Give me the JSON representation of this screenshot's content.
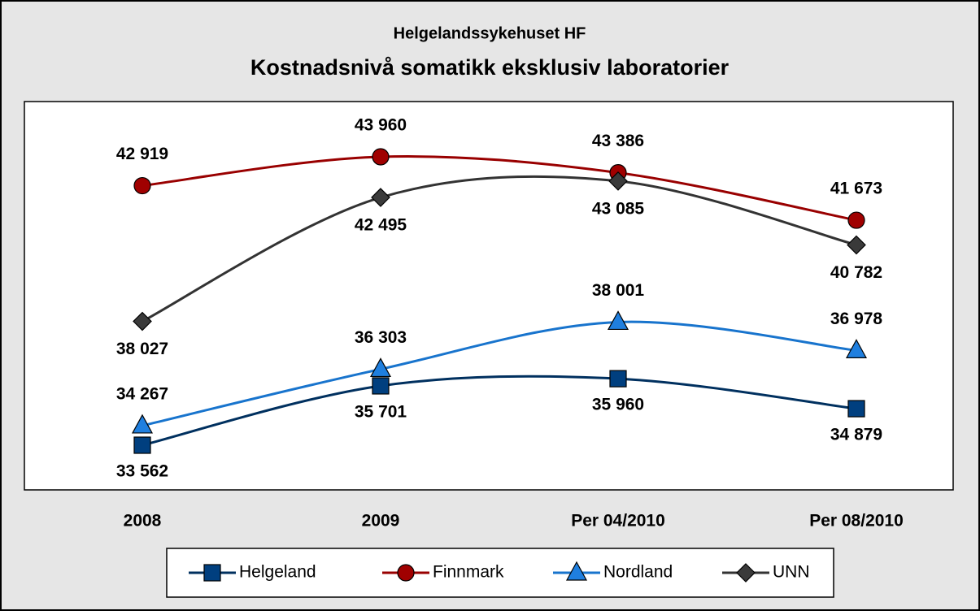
{
  "chart_data": {
    "type": "line",
    "subtitle": "Helgelandssykehuset HF",
    "title": "Kostnadsnivå somatikk eksklusiv laboratorier",
    "categories": [
      "2008",
      "2009",
      "Per 04/2010",
      "Per 08/2010"
    ],
    "series": [
      {
        "name": "Helgeland",
        "color": "#00305f",
        "marker": "square",
        "values": [
          33562,
          35701,
          35960,
          34879
        ],
        "value_labels": [
          "33 562",
          "35 701",
          "35 960",
          "34 879"
        ]
      },
      {
        "name": "Finnmark",
        "color": "#990000",
        "marker": "circle",
        "values": [
          42919,
          43960,
          43386,
          41673
        ],
        "value_labels": [
          "42 919",
          "43 960",
          "43 386",
          "41 673"
        ]
      },
      {
        "name": "Nordland",
        "color": "#1874cd",
        "marker": "triangle",
        "values": [
          34267,
          36303,
          38001,
          36978
        ],
        "value_labels": [
          "34 267",
          "36 303",
          "38 001",
          "36 978"
        ]
      },
      {
        "name": "UNN",
        "color": "#333333",
        "marker": "diamond",
        "values": [
          38027,
          42495,
          43085,
          40782
        ],
        "value_labels": [
          "38 027",
          "42 495",
          "43 085",
          "40 782"
        ]
      }
    ]
  }
}
